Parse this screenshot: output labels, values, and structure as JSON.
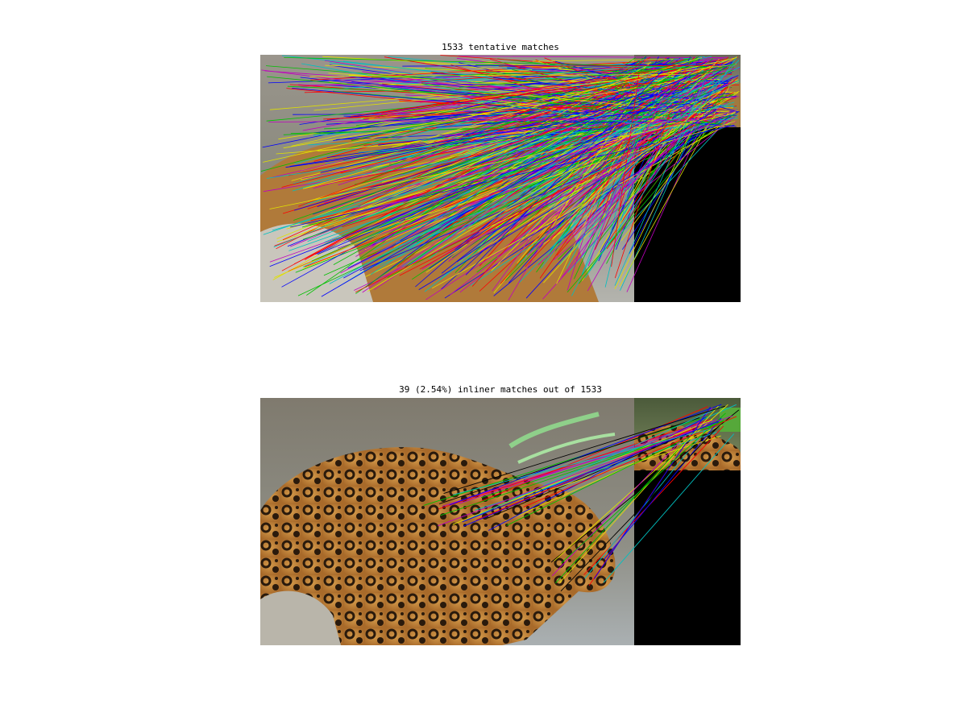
{
  "figure": {
    "top_title": "1533 tentative matches",
    "bottom_title": "39 (2.54%) inliner matches out of 1533"
  },
  "matches": {
    "tentative_count": 1533,
    "inlier_count": 39,
    "inlier_percent": 2.54
  },
  "colors": {
    "match_palette": [
      "#ff0000",
      "#00c000",
      "#0000ff",
      "#00c0c0",
      "#c000c0",
      "#e0e000",
      "#000000"
    ],
    "background": "#ffffff",
    "padding_area": "#000000"
  }
}
